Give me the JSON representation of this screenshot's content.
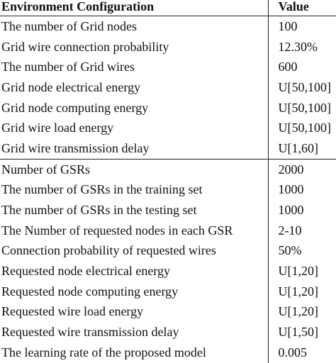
{
  "table": {
    "header": [
      "Environment Configuration",
      "Value"
    ],
    "rows": [
      [
        "The number of Grid nodes",
        "100"
      ],
      [
        "Grid wire connection probability",
        "12.30%"
      ],
      [
        "The number of Grid wires",
        "600"
      ],
      [
        "Grid node electrical energy",
        "U[50,100]"
      ],
      [
        "Grid node computing energy",
        "U[50,100]"
      ],
      [
        "Grid wire load energy",
        "U[50,100]"
      ],
      [
        "Grid wire transmission delay",
        "U[1,60]"
      ],
      [
        "Number of GSRs",
        "2000"
      ],
      [
        "The number of GSRs in the training set",
        "1000"
      ],
      [
        "The number of GSRs in the testing set",
        "1000"
      ],
      [
        "The Number of requested nodes in each GSR",
        "2-10"
      ],
      [
        "Connection probability of requested wires",
        "50%"
      ],
      [
        "Requested node electrical energy",
        "U[1,20]"
      ],
      [
        "Requested node computing energy",
        "U[1,20]"
      ],
      [
        "Requested wire load energy",
        "U[1,20]"
      ],
      [
        "Requested wire transmission delay",
        "U[1,50]"
      ],
      [
        "The learning rate of the proposed model",
        "0.005"
      ]
    ]
  }
}
